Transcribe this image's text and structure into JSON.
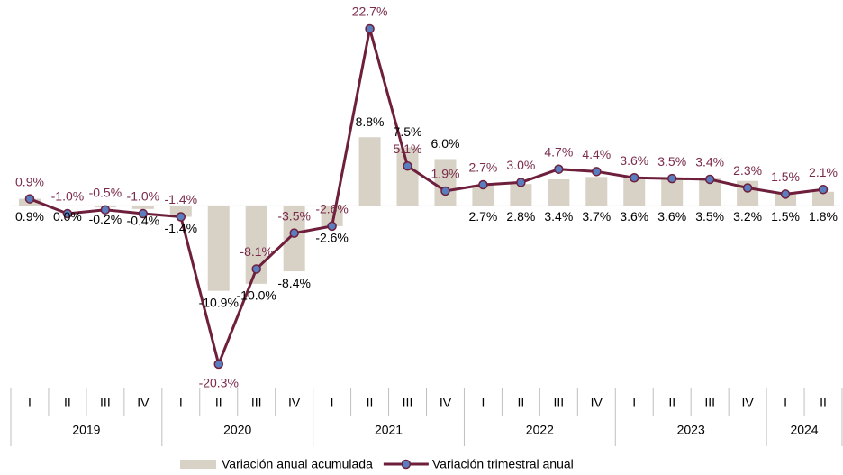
{
  "chart_data": {
    "type": "combo",
    "groups": [
      {
        "label": "2019",
        "quarters": [
          "I",
          "II",
          "III",
          "IV"
        ]
      },
      {
        "label": "2020",
        "quarters": [
          "I",
          "II",
          "III",
          "IV"
        ]
      },
      {
        "label": "2021",
        "quarters": [
          "I",
          "II",
          "III",
          "IV"
        ]
      },
      {
        "label": "2022",
        "quarters": [
          "I",
          "II",
          "III",
          "IV"
        ]
      },
      {
        "label": "2023",
        "quarters": [
          "I",
          "II",
          "III",
          "IV"
        ]
      },
      {
        "label": "2024",
        "quarters": [
          "I",
          "II"
        ]
      }
    ],
    "series": [
      {
        "name": "Variación anual acumulada",
        "type": "bar",
        "color": "#d8d1c5",
        "label_color": "#000000",
        "values": [
          0.9,
          0.0,
          -0.2,
          -0.4,
          -1.4,
          -10.9,
          -10.0,
          -8.4,
          -2.6,
          8.8,
          7.5,
          6.0,
          2.7,
          2.8,
          3.4,
          3.7,
          3.6,
          3.6,
          3.5,
          3.2,
          1.5,
          1.8
        ],
        "value_labels": [
          "0.9%",
          "0.0%",
          "-0.2%",
          "-0.4%",
          "-1.4%",
          "-10.9%",
          "-10.0%",
          "-8.4%",
          "-2.6%",
          "8.8%",
          "7.5%",
          "6.0%",
          "2.7%",
          "2.8%",
          "3.4%",
          "3.7%",
          "3.6%",
          "3.6%",
          "3.5%",
          "3.2%",
          "1.5%",
          "1.8%"
        ]
      },
      {
        "name": "Variación trimestral anual",
        "type": "line",
        "color": "#6e1f3c",
        "marker_color": "#5a7dc0",
        "label_color": "#7a2b4b",
        "values": [
          0.9,
          -1.0,
          -0.5,
          -1.0,
          -1.4,
          -20.3,
          -8.1,
          -3.5,
          -2.6,
          22.7,
          5.1,
          1.9,
          2.7,
          3.0,
          4.7,
          4.4,
          3.6,
          3.5,
          3.4,
          2.3,
          1.5,
          2.1
        ],
        "value_labels": [
          "0.9%",
          "-1.0%",
          "-0.5%",
          "-1.0%",
          "-1.4%",
          "-20.3%",
          "-8.1%",
          "-3.5%",
          "-2.6%",
          "22.7%",
          "5.1%",
          "1.9%",
          "2.7%",
          "3.0%",
          "4.7%",
          "4.4%",
          "3.6%",
          "3.5%",
          "3.4%",
          "2.3%",
          "1.5%",
          "2.1%"
        ]
      }
    ]
  }
}
